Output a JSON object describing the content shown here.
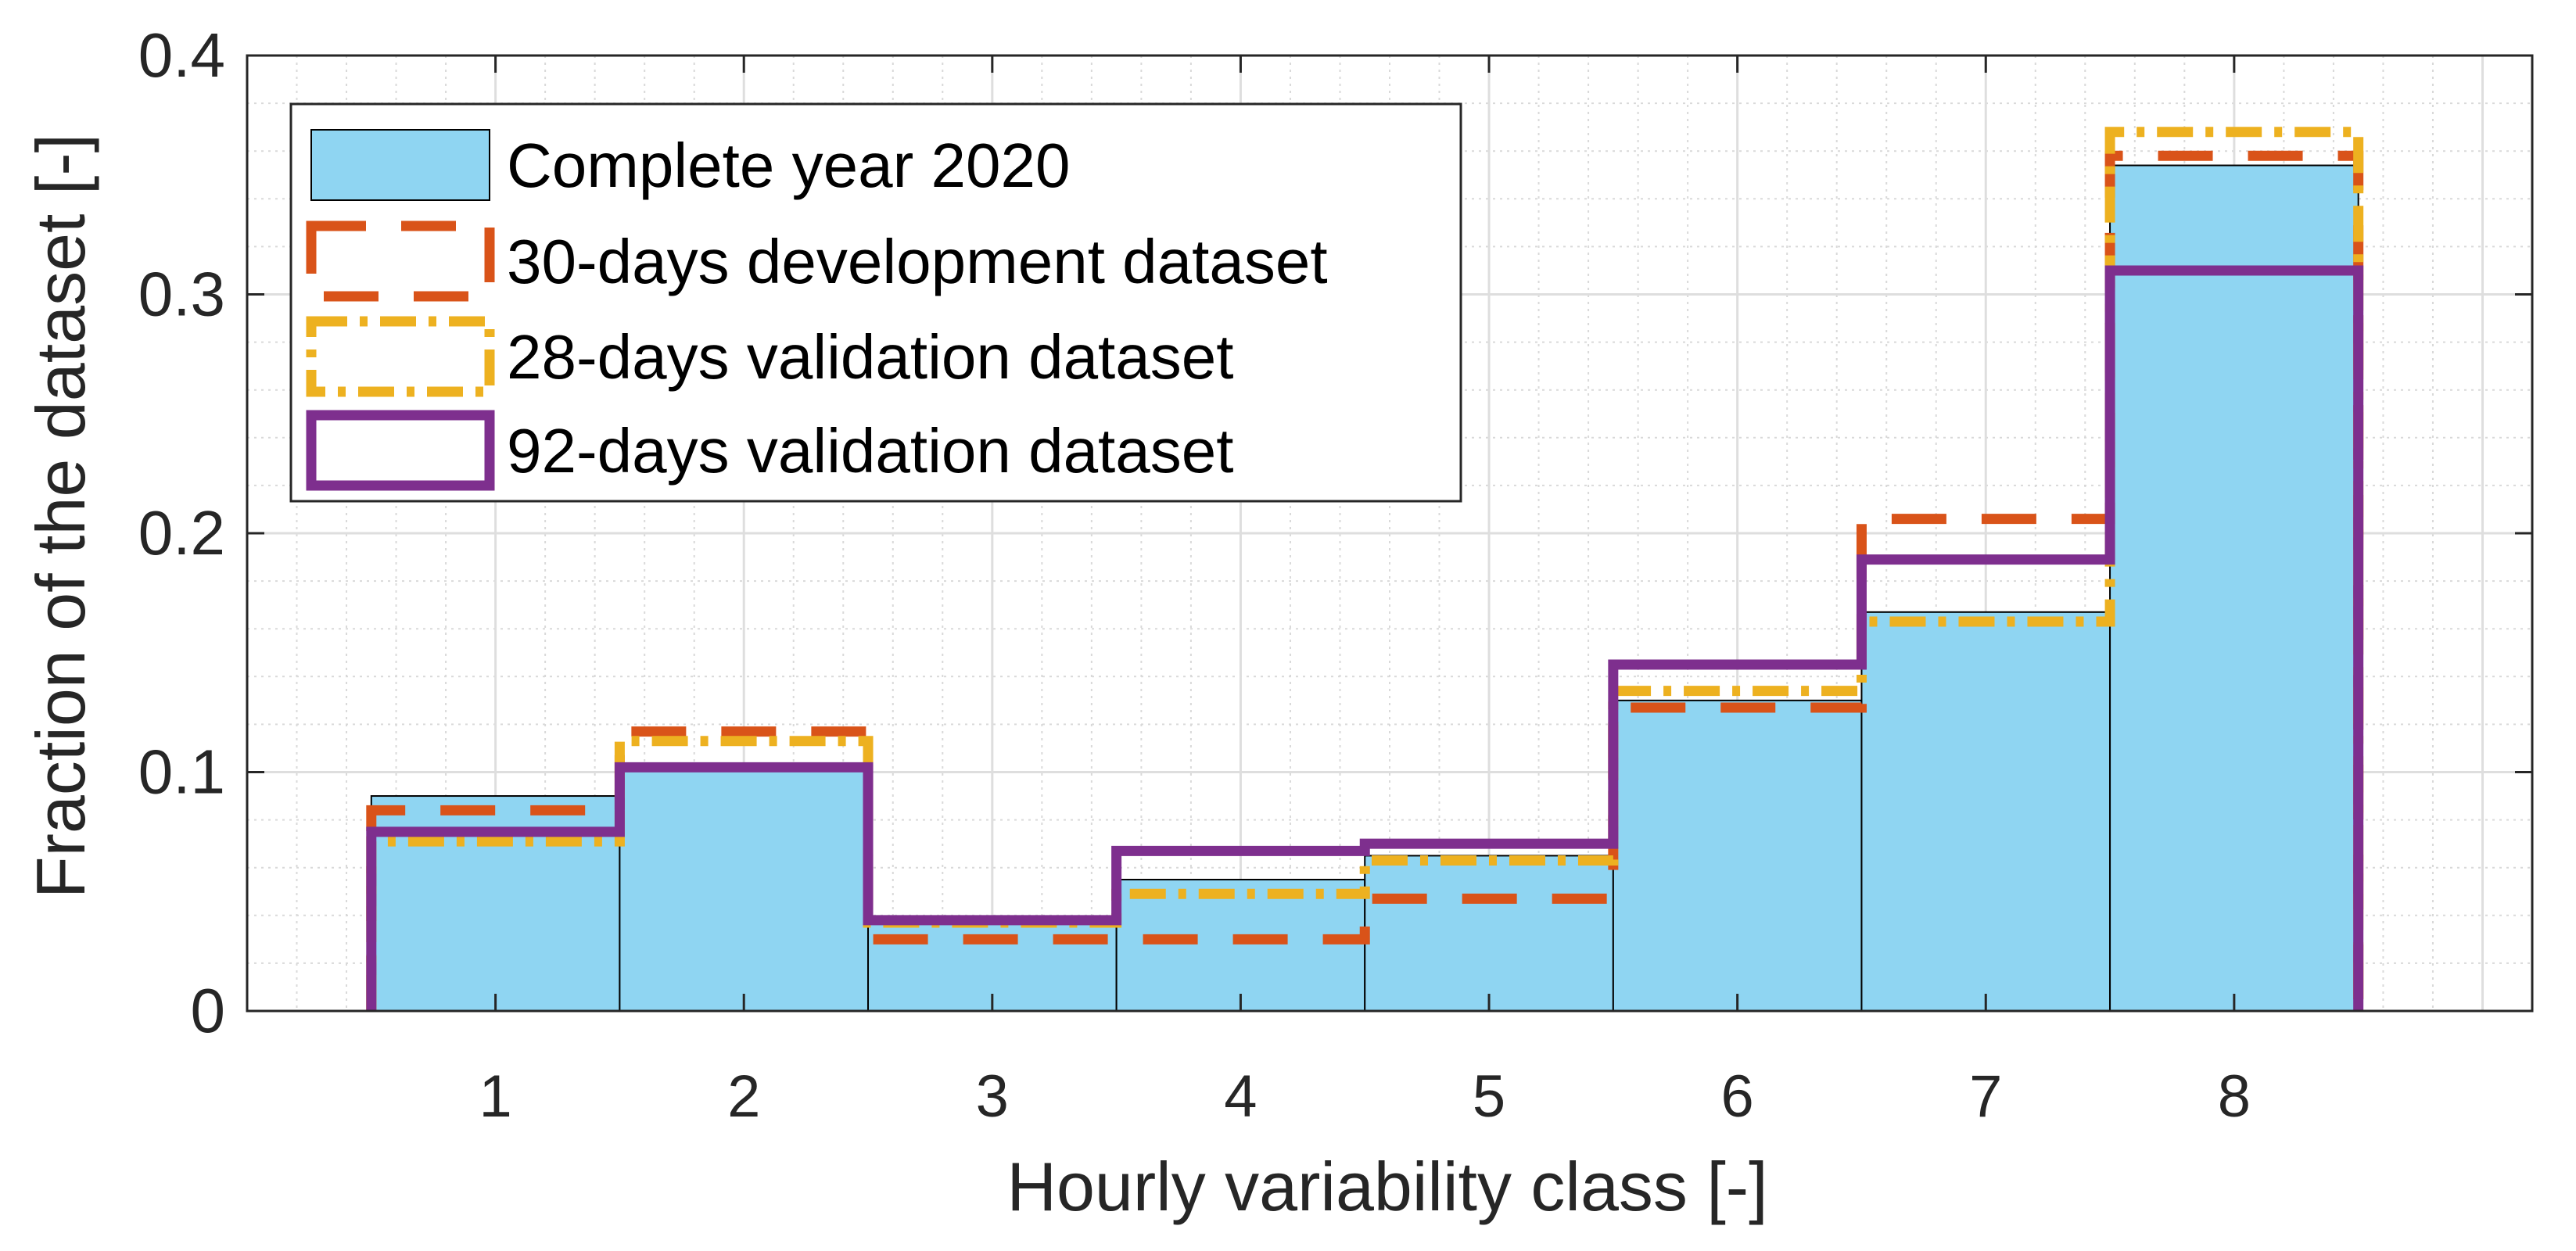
{
  "chart_data": {
    "type": "bar",
    "xlabel": "Hourly variability class [-]",
    "ylabel": "Fraction of the dataset [-]",
    "categories": [
      "1",
      "2",
      "3",
      "4",
      "5",
      "6",
      "7",
      "8"
    ],
    "ylim": [
      0,
      0.4
    ],
    "yticks": [
      0,
      0.1,
      0.2,
      0.3,
      0.4
    ],
    "ytick_labels": [
      "0",
      "0.1",
      "0.2",
      "0.3",
      "0.4"
    ],
    "grid": "major-and-minor",
    "legend_position": "top-left",
    "series": [
      {
        "name": "Complete year 2020",
        "style": "bar",
        "color": "#8fd5f2",
        "values": [
          0.09,
          0.102,
          0.037,
          0.055,
          0.065,
          0.13,
          0.167,
          0.354
        ]
      },
      {
        "name": "30-days development dataset",
        "style": "dashed-stairs",
        "color": "#d95319",
        "values": [
          0.084,
          0.117,
          0.03,
          0.03,
          0.047,
          0.127,
          0.206,
          0.358
        ]
      },
      {
        "name": "28-days validation dataset",
        "style": "dashdot-stairs",
        "color": "#edb120",
        "values": [
          0.071,
          0.113,
          0.037,
          0.049,
          0.063,
          0.134,
          0.163,
          0.368
        ]
      },
      {
        "name": "92-days validation dataset",
        "style": "solid-stairs",
        "color": "#7e2f8e",
        "values": [
          0.075,
          0.102,
          0.038,
          0.067,
          0.07,
          0.145,
          0.189,
          0.31
        ]
      }
    ]
  }
}
